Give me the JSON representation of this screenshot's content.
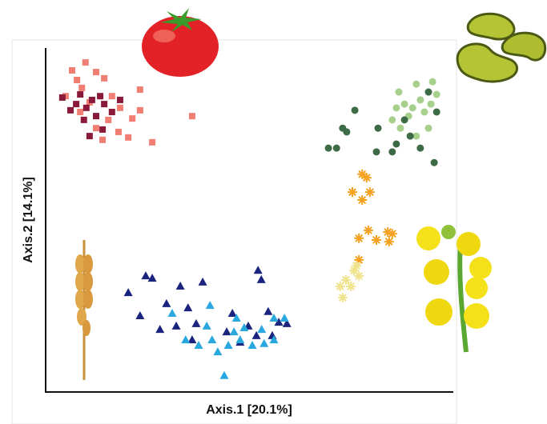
{
  "chart_data": {
    "type": "scatter",
    "xlabel": "Axis.1   [20.1%]",
    "ylabel": "Axis.2   [14.1%]",
    "xlim": [
      0,
      100
    ],
    "ylim": [
      0,
      100
    ],
    "series": [
      {
        "color": "#f07e72",
        "marker": "square",
        "x": [
          9.8,
          6.5,
          12.4,
          7.7,
          14.4,
          8.9,
          4.9,
          16.3,
          23.2,
          10.8,
          18.3,
          23.2,
          36.0,
          12.4,
          21.3,
          17.9,
          20.3,
          26.2,
          14.0,
          8.5,
          15.4
        ],
        "y": [
          95.8,
          93.5,
          93.0,
          90.7,
          91.2,
          88.4,
          86.0,
          86.0,
          87.9,
          84.2,
          82.6,
          81.9,
          80.2,
          76.7,
          79.5,
          75.6,
          74.0,
          72.6,
          73.3,
          81.4,
          79.1
        ]
      },
      {
        "color": "#8b1a3a",
        "marker": "square",
        "x": [
          4.1,
          8.5,
          11.4,
          13.4,
          14.4,
          10.0,
          6.1,
          12.4,
          16.3,
          9.4,
          14.0,
          10.8,
          7.5,
          18.3
        ],
        "y": [
          85.6,
          86.5,
          84.9,
          86.0,
          83.7,
          82.6,
          81.9,
          80.2,
          81.4,
          79.1,
          76.3,
          74.4,
          83.7,
          84.9
        ]
      },
      {
        "color": "#a8d08d",
        "marker": "circle",
        "x": [
          86.8,
          91.1,
          95.1,
          88.2,
          92.1,
          96.1,
          85.2,
          89.2,
          93.1,
          87.2,
          91.1,
          94.1,
          90.2,
          86.2,
          94.7
        ],
        "y": [
          87.2,
          89.5,
          90.2,
          83.7,
          84.9,
          86.5,
          79.1,
          80.2,
          81.4,
          76.7,
          74.4,
          76.7,
          82.6,
          82.6,
          83.7
        ]
      },
      {
        "color": "#3d6b45",
        "marker": "circle",
        "x": [
          76.0,
          73.0,
          69.5,
          71.5,
          81.7,
          81.3,
          86.2,
          88.2,
          89.6,
          92.1,
          95.5,
          94.1,
          96.1,
          85.2,
          74.0
        ],
        "y": [
          81.9,
          76.7,
          70.9,
          70.9,
          76.7,
          69.8,
          72.1,
          79.1,
          74.4,
          70.9,
          66.7,
          87.2,
          81.4,
          69.8,
          75.6
        ]
      },
      {
        "color": "#f5a11f",
        "marker": "asterisk",
        "x": [
          77.8,
          75.4,
          79.7,
          77.8,
          78.9,
          79.3,
          77.0,
          81.3,
          84.1,
          85.2,
          77.0,
          84.4
        ],
        "y": [
          63.3,
          58.1,
          58.1,
          55.8,
          62.3,
          47.0,
          44.7,
          44.2,
          46.5,
          46.0,
          38.4,
          43.7
        ]
      },
      {
        "color": "#efe38c",
        "marker": "asterisk",
        "x": [
          75.8,
          73.8,
          77.0,
          72.4,
          75.0,
          73.0,
          76.4
        ],
        "y": [
          35.3,
          32.6,
          33.7,
          30.7,
          30.7,
          27.4,
          36.7
        ]
      },
      {
        "color": "#1a237e",
        "marker": "triangle",
        "x": [
          24.6,
          26.2,
          20.3,
          33.1,
          38.6,
          52.2,
          53.0,
          29.7,
          23.2,
          35.0,
          45.9,
          28.1,
          32.1,
          37.0,
          44.5,
          49.8,
          54.7,
          57.3,
          59.3,
          47.8,
          51.8,
          55.7,
          36.0
        ],
        "y": [
          33.7,
          33.0,
          28.8,
          30.7,
          31.9,
          35.3,
          32.6,
          25.6,
          22.1,
          24.4,
          22.8,
          18.1,
          19.1,
          19.8,
          17.4,
          19.1,
          23.3,
          20.2,
          19.8,
          14.4,
          16.3,
          16.3,
          15.1
        ]
      },
      {
        "color": "#29a8e0",
        "marker": "triangle",
        "x": [
          40.4,
          31.1,
          39.6,
          34.4,
          37.6,
          42.3,
          46.3,
          47.8,
          44.9,
          50.8,
          56.1,
          58.7,
          53.1,
          48.8,
          56.1,
          53.7,
          43.9,
          46.9,
          40.9
        ],
        "y": [
          25.1,
          22.8,
          19.1,
          15.1,
          13.5,
          11.6,
          17.4,
          15.1,
          13.5,
          13.5,
          21.4,
          21.4,
          18.1,
          18.6,
          15.1,
          14.0,
          4.7,
          21.4,
          15.1
        ]
      }
    ]
  }
}
